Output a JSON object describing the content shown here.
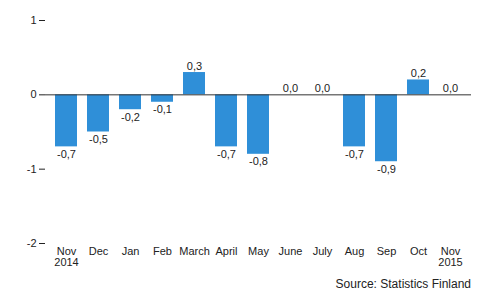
{
  "chart_data": {
    "type": "bar",
    "categories": [
      "Nov\n2014",
      "Dec",
      "Jan",
      "Feb",
      "March",
      "April",
      "May",
      "June",
      "July",
      "Aug",
      "Sep",
      "Oct",
      "Nov\n2015"
    ],
    "values": [
      -0.7,
      -0.5,
      -0.2,
      -0.1,
      0.3,
      -0.7,
      -0.8,
      0.0,
      0.0,
      -0.7,
      -0.9,
      0.2,
      0.0
    ],
    "value_labels": [
      "-0,7",
      "-0,5",
      "-0,2",
      "-0,1",
      "0,3",
      "-0,7",
      "-0,8",
      "0,0",
      "0,0",
      "-0,7",
      "-0,9",
      "0,2",
      "0,0"
    ],
    "data_labels": true,
    "color": "#2f8fd8",
    "ylim": [
      -2,
      1
    ],
    "yticks": [
      -2,
      -1,
      0,
      1
    ],
    "grid": false,
    "caption": "Source: Statistics Finland"
  }
}
